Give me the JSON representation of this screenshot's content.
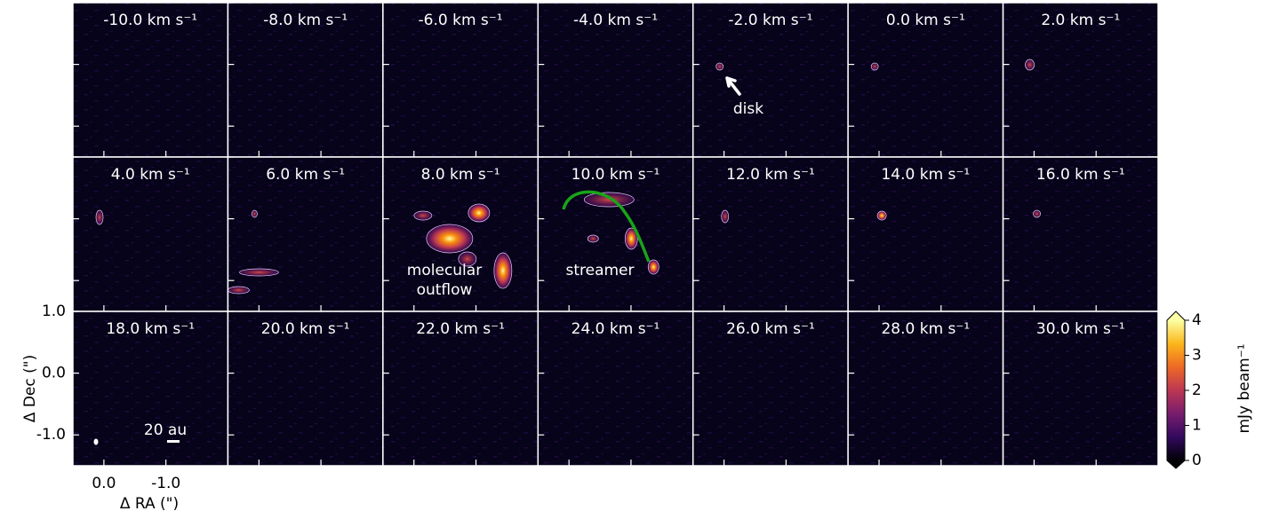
{
  "chart_data": {
    "type": "channel-map",
    "panels": [
      "-10.0 km s⁻¹",
      "-8.0 km s⁻¹",
      "-6.0 km s⁻¹",
      "-4.0 km s⁻¹",
      "-2.0 km s⁻¹",
      "0.0 km s⁻¹",
      "2.0 km s⁻¹",
      "4.0 km s⁻¹",
      "6.0 km s⁻¹",
      "8.0 km s⁻¹",
      "10.0 km s⁻¹",
      "12.0 km s⁻¹",
      "14.0 km s⁻¹",
      "16.0 km s⁻¹",
      "18.0 km s⁻¹",
      "20.0 km s⁻¹",
      "22.0 km s⁻¹",
      "24.0 km s⁻¹",
      "26.0 km s⁻¹",
      "28.0 km s⁻¹",
      "30.0 km s⁻¹"
    ],
    "xlabel": "Δ RA (\")",
    "ylabel": "Δ Dec (\")",
    "xlim": [
      0.5,
      -2.0
    ],
    "ylim": [
      -1.5,
      1.0
    ],
    "xticks": [
      {
        "value": 0,
        "label": "0.0"
      },
      {
        "value": -1,
        "label": "-1.0"
      }
    ],
    "yticks": [
      {
        "value": 1,
        "label": "1.0"
      },
      {
        "value": 0,
        "label": "0.0"
      },
      {
        "value": -1,
        "label": "-1.0"
      }
    ],
    "annotations": {
      "disk": "disk",
      "outflow": [
        "molecular",
        "outflow"
      ],
      "streamer": "streamer",
      "scale_bar": "20 au"
    },
    "colorbar": {
      "label": "mJy beam⁻¹",
      "lim": [
        0,
        4
      ],
      "ticks": [
        0,
        1,
        2,
        3,
        4
      ],
      "colors": [
        "#000004",
        "#320a5e",
        "#781c6d",
        "#bb3754",
        "#ed6925",
        "#fbb61a",
        "#fcffa4"
      ]
    }
  }
}
